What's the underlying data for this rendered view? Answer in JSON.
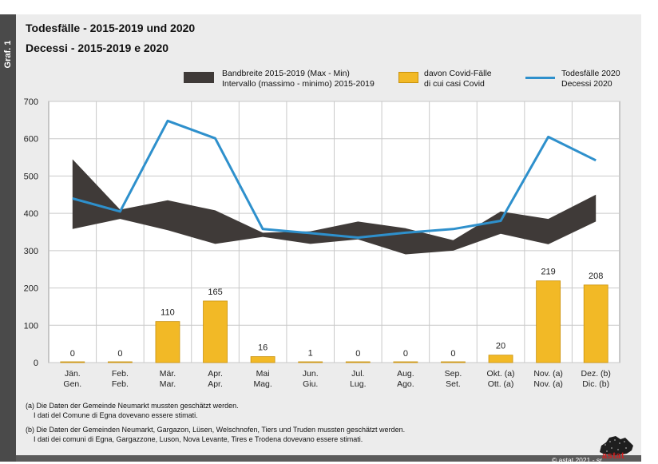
{
  "side_label": "Graf. 1",
  "title_line1": "Todesfälle - 2015-2019 und 2020",
  "title_line2": "Decessi - 2015-2019 e 2020",
  "legend": {
    "range_line1": "Bandbreite 2015-2019 (Max - Min)",
    "range_line2": "Intervallo (massimo - minimo) 2015-2019",
    "covid_line1": "davon Covid-Fälle",
    "covid_line2": "di cui casi Covid",
    "deaths_line1": "Todesfälle 2020",
    "deaths_line2": "Decessi 2020"
  },
  "notes": {
    "a_line1": "(a)  Die Daten der Gemeinde Neumarkt mussten geschätzt werden.",
    "a_line2": "I dati del Comune di Egna dovevano essere stimati.",
    "b_line1": "(b)  Die Daten der Gemeinden Neumarkt, Gargazon, Lüsen, Welschnofen, Tiers und Truden mussten geschätzt werden.",
    "b_line2": "I dati dei comuni di Egna, Gargazzone, Luson, Nova Levante, Tires e Trodena dovevano essere stimati."
  },
  "credit": "© astat 2021 - sr",
  "logo_text": "astat",
  "colors": {
    "range_band": "#3f3a38",
    "covid_bar": "#f2b926",
    "covid_bar_edge": "#c8920e",
    "deaths_line": "#2e90cc",
    "grid": "#c9c9c9",
    "plot_bg": "#ffffff",
    "frame_bg": "#ececec"
  },
  "chart_data": {
    "type": "bar+line+area",
    "ylim": [
      0,
      700
    ],
    "yticks": [
      0,
      100,
      200,
      300,
      400,
      500,
      600,
      700
    ],
    "grid": true,
    "categories": [
      [
        "Jän.",
        "Gen."
      ],
      [
        "Feb.",
        "Feb."
      ],
      [
        "Mär.",
        "Mar."
      ],
      [
        "Apr.",
        "Apr."
      ],
      [
        "Mai",
        "Mag."
      ],
      [
        "Jun.",
        "Giu."
      ],
      [
        "Jul.",
        "Lug."
      ],
      [
        "Aug.",
        "Ago."
      ],
      [
        "Sep.",
        "Set."
      ],
      [
        "Okt. (a)",
        "Ott. (a)"
      ],
      [
        "Nov. (a)",
        "Nov. (a)"
      ],
      [
        "Dez. (b)",
        "Dic. (b)"
      ]
    ],
    "series": [
      {
        "name": "Bandbreite 2015-2019 (Max - Min)",
        "type": "area",
        "max": [
          545,
          410,
          435,
          408,
          348,
          352,
          378,
          360,
          328,
          405,
          385,
          450
        ],
        "min": [
          358,
          385,
          355,
          318,
          337,
          318,
          330,
          290,
          300,
          345,
          317,
          378
        ]
      },
      {
        "name": "davon Covid-Fälle",
        "type": "bar",
        "values": [
          0,
          0,
          110,
          165,
          16,
          1,
          0,
          0,
          0,
          20,
          219,
          208
        ]
      },
      {
        "name": "Todesfälle 2020",
        "type": "line",
        "values": [
          440,
          405,
          648,
          601,
          358,
          347,
          335,
          348,
          358,
          380,
          605,
          542
        ]
      }
    ]
  }
}
